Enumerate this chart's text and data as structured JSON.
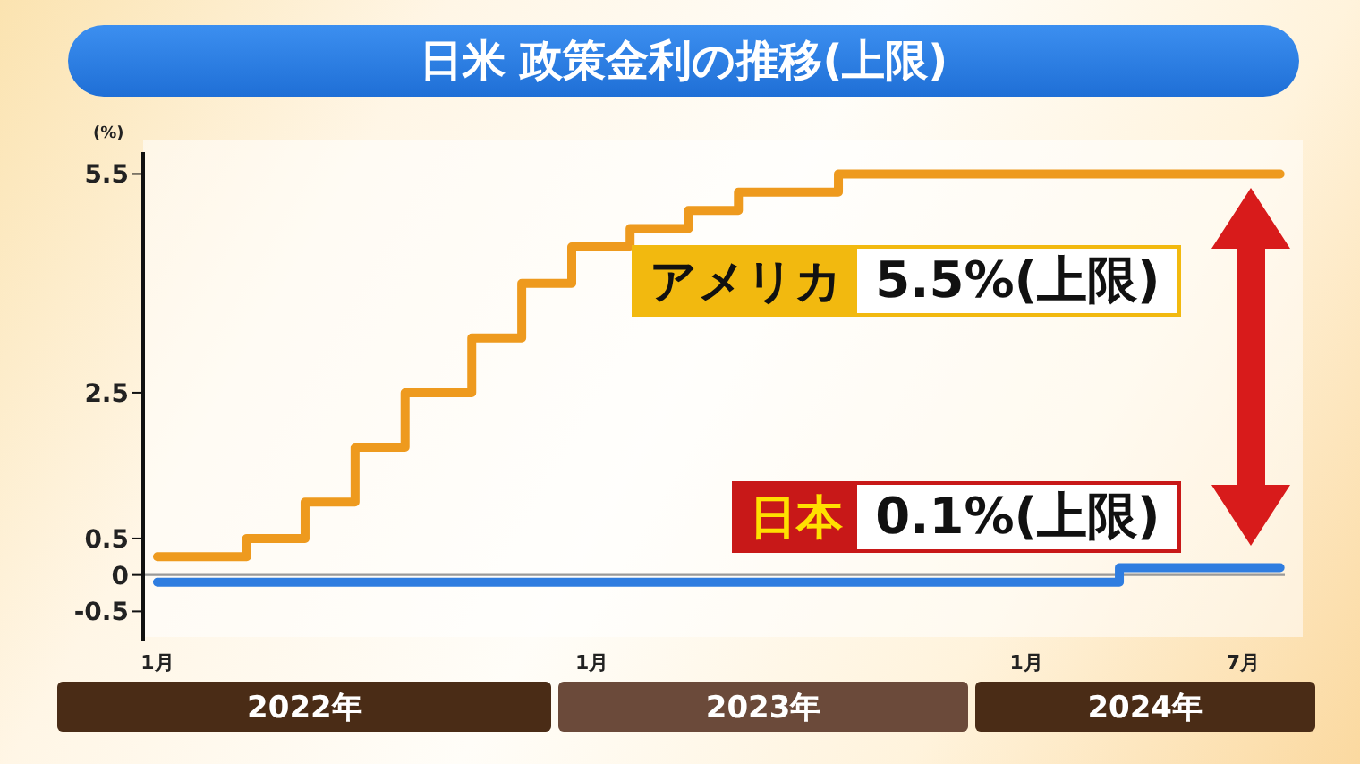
{
  "chart_data": {
    "type": "step",
    "title": "日米 政策金利の推移(上限)",
    "ylabel": "(%)",
    "series": [
      {
        "name": "アメリカ",
        "color": "#ee9a1e",
        "x": [
          "2022-01-01",
          "2022-03-17",
          "2022-05-05",
          "2022-06-16",
          "2022-07-28",
          "2022-09-22",
          "2022-11-03",
          "2022-12-15",
          "2023-02-02",
          "2023-03-23",
          "2023-05-04",
          "2023-07-27",
          "2024-08-01"
        ],
        "values": [
          0.25,
          0.5,
          1.0,
          1.75,
          2.5,
          3.25,
          4.0,
          4.5,
          4.75,
          5.0,
          5.25,
          5.5,
          5.5
        ]
      },
      {
        "name": "日本",
        "color": "#2f7de0",
        "x": [
          "2022-01-01",
          "2024-03-19",
          "2024-08-01"
        ],
        "values": [
          -0.1,
          0.1,
          0.1
        ]
      }
    ],
    "annotations": [
      {
        "text": "5.5%(上限)",
        "x": "2024-08-01",
        "y": 5.5
      },
      {
        "text": "0.1%(上限)",
        "x": "2024-08-01",
        "y": 0.1
      },
      "2022年",
      "2023年",
      "2024年"
    ],
    "xlim": [
      "2021-12-20",
      "2024-08-05"
    ],
    "xticks": [
      {
        "value": "2022-01-01",
        "label": "1月"
      },
      {
        "value": "2023-01-01",
        "label": "1月"
      },
      {
        "value": "2024-01-01",
        "label": "1月"
      },
      {
        "value": "2024-07-01",
        "label": "7月"
      }
    ],
    "ylim": [
      -0.9,
      5.8
    ],
    "yticks": [
      -0.5,
      0,
      0.5,
      2.5,
      5.5
    ],
    "ref_lines": [
      {
        "axis": "y",
        "value": 0,
        "color": "#999999"
      }
    ],
    "grid": false
  }
}
